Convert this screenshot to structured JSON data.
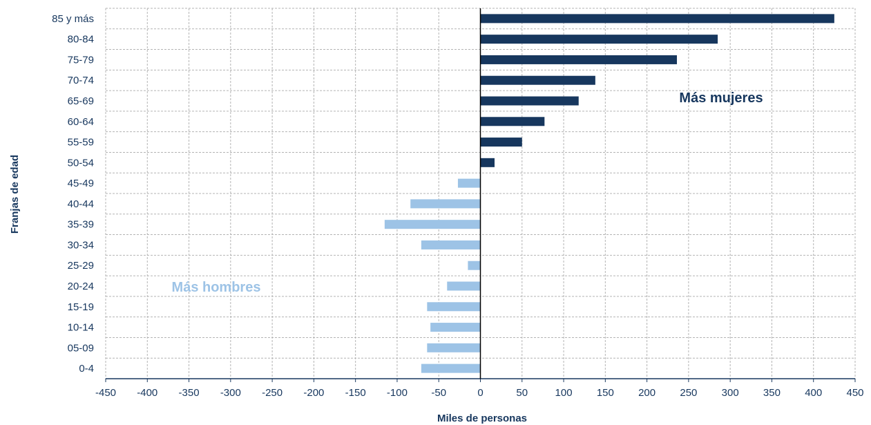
{
  "chart_data": {
    "type": "bar",
    "orientation": "horizontal",
    "xlabel": "Miles de personas",
    "ylabel": "Franjas de edad",
    "xlim": [
      -450,
      450
    ],
    "xticks": [
      -450,
      -400,
      -350,
      -300,
      -250,
      -200,
      -150,
      -100,
      -50,
      0,
      50,
      100,
      150,
      200,
      250,
      300,
      350,
      400,
      450
    ],
    "grid": true,
    "categories": [
      "85 y más",
      "80-84",
      "75-79",
      "70-74",
      "65-69",
      "60-64",
      "55-59",
      "50-54",
      "45-49",
      "40-44",
      "35-39",
      "30-34",
      "25-29",
      "20-24",
      "15-19",
      "10-14",
      "05-09",
      "0-4"
    ],
    "values": [
      425,
      285,
      236,
      138,
      118,
      77,
      50,
      17,
      -27,
      -84,
      -115,
      -71,
      -15,
      -40,
      -64,
      -60,
      -64,
      -71
    ],
    "annotations": [
      {
        "text": "Más mujeres"
      },
      {
        "text": "Más hombres"
      }
    ],
    "colors": {
      "positive": "#17375e",
      "negative": "#9dc3e6",
      "axis_text": "#17375e",
      "grid": "#b3b3b3"
    }
  }
}
